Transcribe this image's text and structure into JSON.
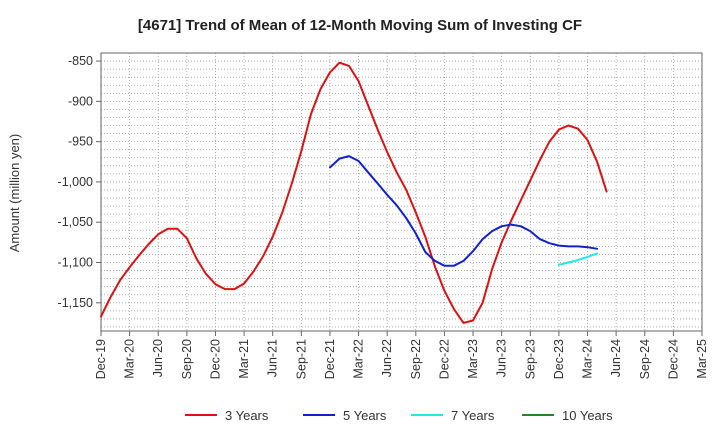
{
  "chart_data": {
    "type": "line",
    "title": "[4671]  Trend of Mean of 12-Month Moving Sum of Investing CF",
    "ylabel": "Amount (million yen)",
    "xlabel": "",
    "ylim": [
      -1185,
      -840
    ],
    "y_ticks": [
      -850,
      -900,
      -950,
      -1000,
      -1050,
      -1100,
      -1150
    ],
    "y_tick_labels": [
      "-850",
      "-900",
      "-950",
      "-1,000",
      "-1,050",
      "-1,100",
      "-1,150"
    ],
    "x_tick_labels": [
      "Dec-19",
      "Mar-20",
      "Jun-20",
      "Sep-20",
      "Dec-20",
      "Mar-21",
      "Jun-21",
      "Sep-21",
      "Dec-21",
      "Mar-22",
      "Jun-22",
      "Sep-22",
      "Dec-22",
      "Mar-23",
      "Jun-23",
      "Sep-23",
      "Dec-23",
      "Mar-24",
      "Jun-24",
      "Sep-24",
      "Dec-24",
      "Mar-25"
    ],
    "x_start": "Dec-19",
    "months_total": 63,
    "grid": true,
    "legend_position": "bottom",
    "series": [
      {
        "name": "3 Years",
        "color": "#dd1111",
        "start_month": 0,
        "values": [
          -1167,
          -1143,
          -1122,
          -1106,
          -1091,
          -1077,
          -1065,
          -1058,
          -1058,
          -1070,
          -1095,
          -1114,
          -1127,
          -1133,
          -1133,
          -1126,
          -1111,
          -1092,
          -1068,
          -1038,
          -1002,
          -962,
          -916,
          -885,
          -864,
          -852,
          -856,
          -875,
          -905,
          -935,
          -963,
          -988,
          -1010,
          -1038,
          -1068,
          -1105,
          -1135,
          -1158,
          -1175,
          -1172,
          -1150,
          -1108,
          -1075,
          -1048,
          -1023,
          -998,
          -973,
          -950,
          -935,
          -930,
          -934,
          -948,
          -975,
          -1012
        ]
      },
      {
        "name": "5 Years",
        "color": "#1122cc",
        "start_month": 24,
        "values": [
          -982,
          -971,
          -968,
          -974,
          -988,
          -1002,
          -1016,
          -1029,
          -1045,
          -1064,
          -1087,
          -1098,
          -1104,
          -1104,
          -1098,
          -1086,
          -1071,
          -1061,
          -1055,
          -1053,
          -1055,
          -1061,
          -1071,
          -1076,
          -1079,
          -1080,
          -1080,
          -1081,
          -1083
        ]
      },
      {
        "name": "7 Years",
        "color": "#22e8e8",
        "start_month": 48,
        "values": [
          -1103,
          -1100,
          -1097,
          -1093,
          -1089
        ]
      },
      {
        "name": "10 Years",
        "color": "#228822",
        "start_month": 0,
        "values": []
      }
    ]
  }
}
